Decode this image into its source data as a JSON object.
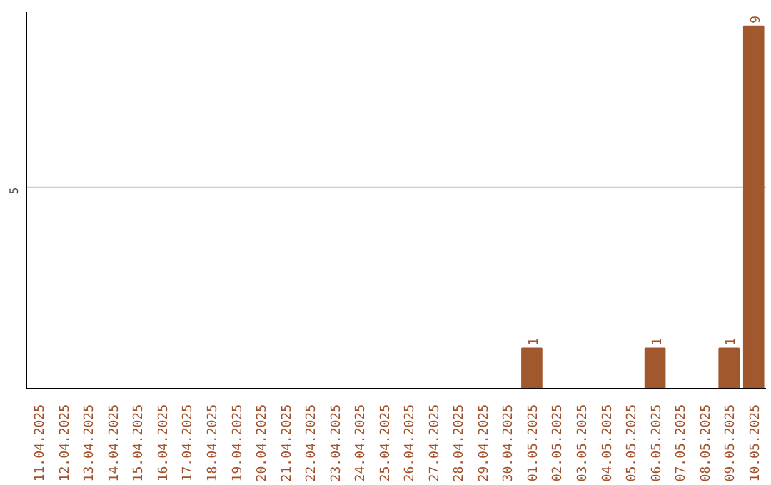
{
  "chart_data": {
    "type": "bar",
    "categories": [
      "11.04.2025",
      "12.04.2025",
      "13.04.2025",
      "14.04.2025",
      "15.04.2025",
      "16.04.2025",
      "17.04.2025",
      "18.04.2025",
      "19.04.2025",
      "20.04.2025",
      "21.04.2025",
      "22.04.2025",
      "23.04.2025",
      "24.04.2025",
      "25.04.2025",
      "26.04.2025",
      "27.04.2025",
      "28.04.2025",
      "29.04.2025",
      "30.04.2025",
      "01.05.2025",
      "02.05.2025",
      "03.05.2025",
      "04.05.2025",
      "05.05.2025",
      "06.05.2025",
      "07.05.2025",
      "08.05.2025",
      "09.05.2025",
      "10.05.2025"
    ],
    "values": [
      null,
      null,
      null,
      null,
      null,
      null,
      null,
      null,
      null,
      null,
      null,
      null,
      null,
      null,
      null,
      null,
      null,
      null,
      null,
      null,
      1,
      null,
      null,
      null,
      null,
      1,
      null,
      null,
      1,
      9
    ],
    "value_labels": [
      null,
      null,
      null,
      null,
      null,
      null,
      null,
      null,
      null,
      null,
      null,
      null,
      null,
      null,
      null,
      null,
      null,
      null,
      null,
      null,
      "1",
      null,
      null,
      null,
      null,
      "1",
      null,
      null,
      "1",
      "9"
    ],
    "color": "#a0582c",
    "ylim": [
      0,
      9.35
    ],
    "ref_lines": [
      {
        "axis": "y",
        "value": 5,
        "label": "5",
        "color": "#cccccc"
      }
    ]
  }
}
